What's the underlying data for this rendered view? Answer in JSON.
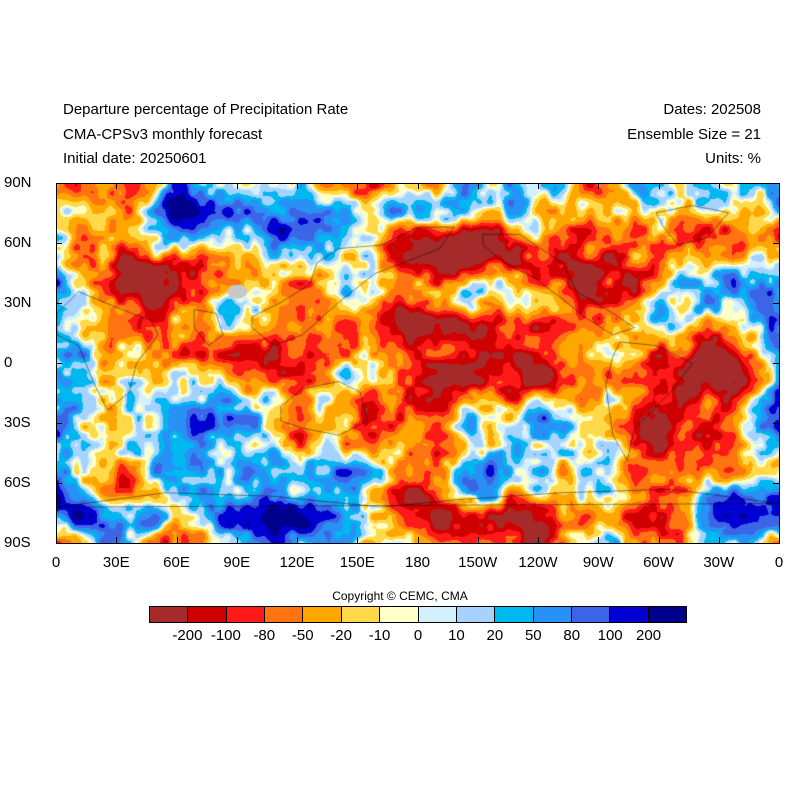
{
  "header": {
    "title": "Departure percentage of Precipitation Rate",
    "model": "CMA-CPSv3 monthly forecast",
    "initial_date": "Initial date: 20250601",
    "dates": "Dates: 202508",
    "ensemble": "Ensemble Size = 21",
    "units": "Units: %"
  },
  "map": {
    "projection": "cylindrical equidistant",
    "field": "precipitation rate departure percentage",
    "lat_labels": [
      "90N",
      "60N",
      "30N",
      "0",
      "30S",
      "60S",
      "90S"
    ],
    "lon_labels": [
      "0",
      "30E",
      "60E",
      "90E",
      "120E",
      "150E",
      "180",
      "150W",
      "120W",
      "90W",
      "60W",
      "30W",
      "0"
    ]
  },
  "copyright": "Copyright © CEMC, CMA",
  "colorbar": {
    "colors": [
      "#a52a2a",
      "#d00000",
      "#ff1a1a",
      "#ff7410",
      "#ffa600",
      "#ffd94a",
      "#ffffc8",
      "#d2f0ff",
      "#a5d2ff",
      "#00b8f0",
      "#2891f5",
      "#3c64e6",
      "#0000d2",
      "#00008c"
    ],
    "labels": [
      "-200",
      "-100",
      "-80",
      "-50",
      "-20",
      "-10",
      "0",
      "10",
      "20",
      "50",
      "80",
      "100",
      "200"
    ]
  }
}
